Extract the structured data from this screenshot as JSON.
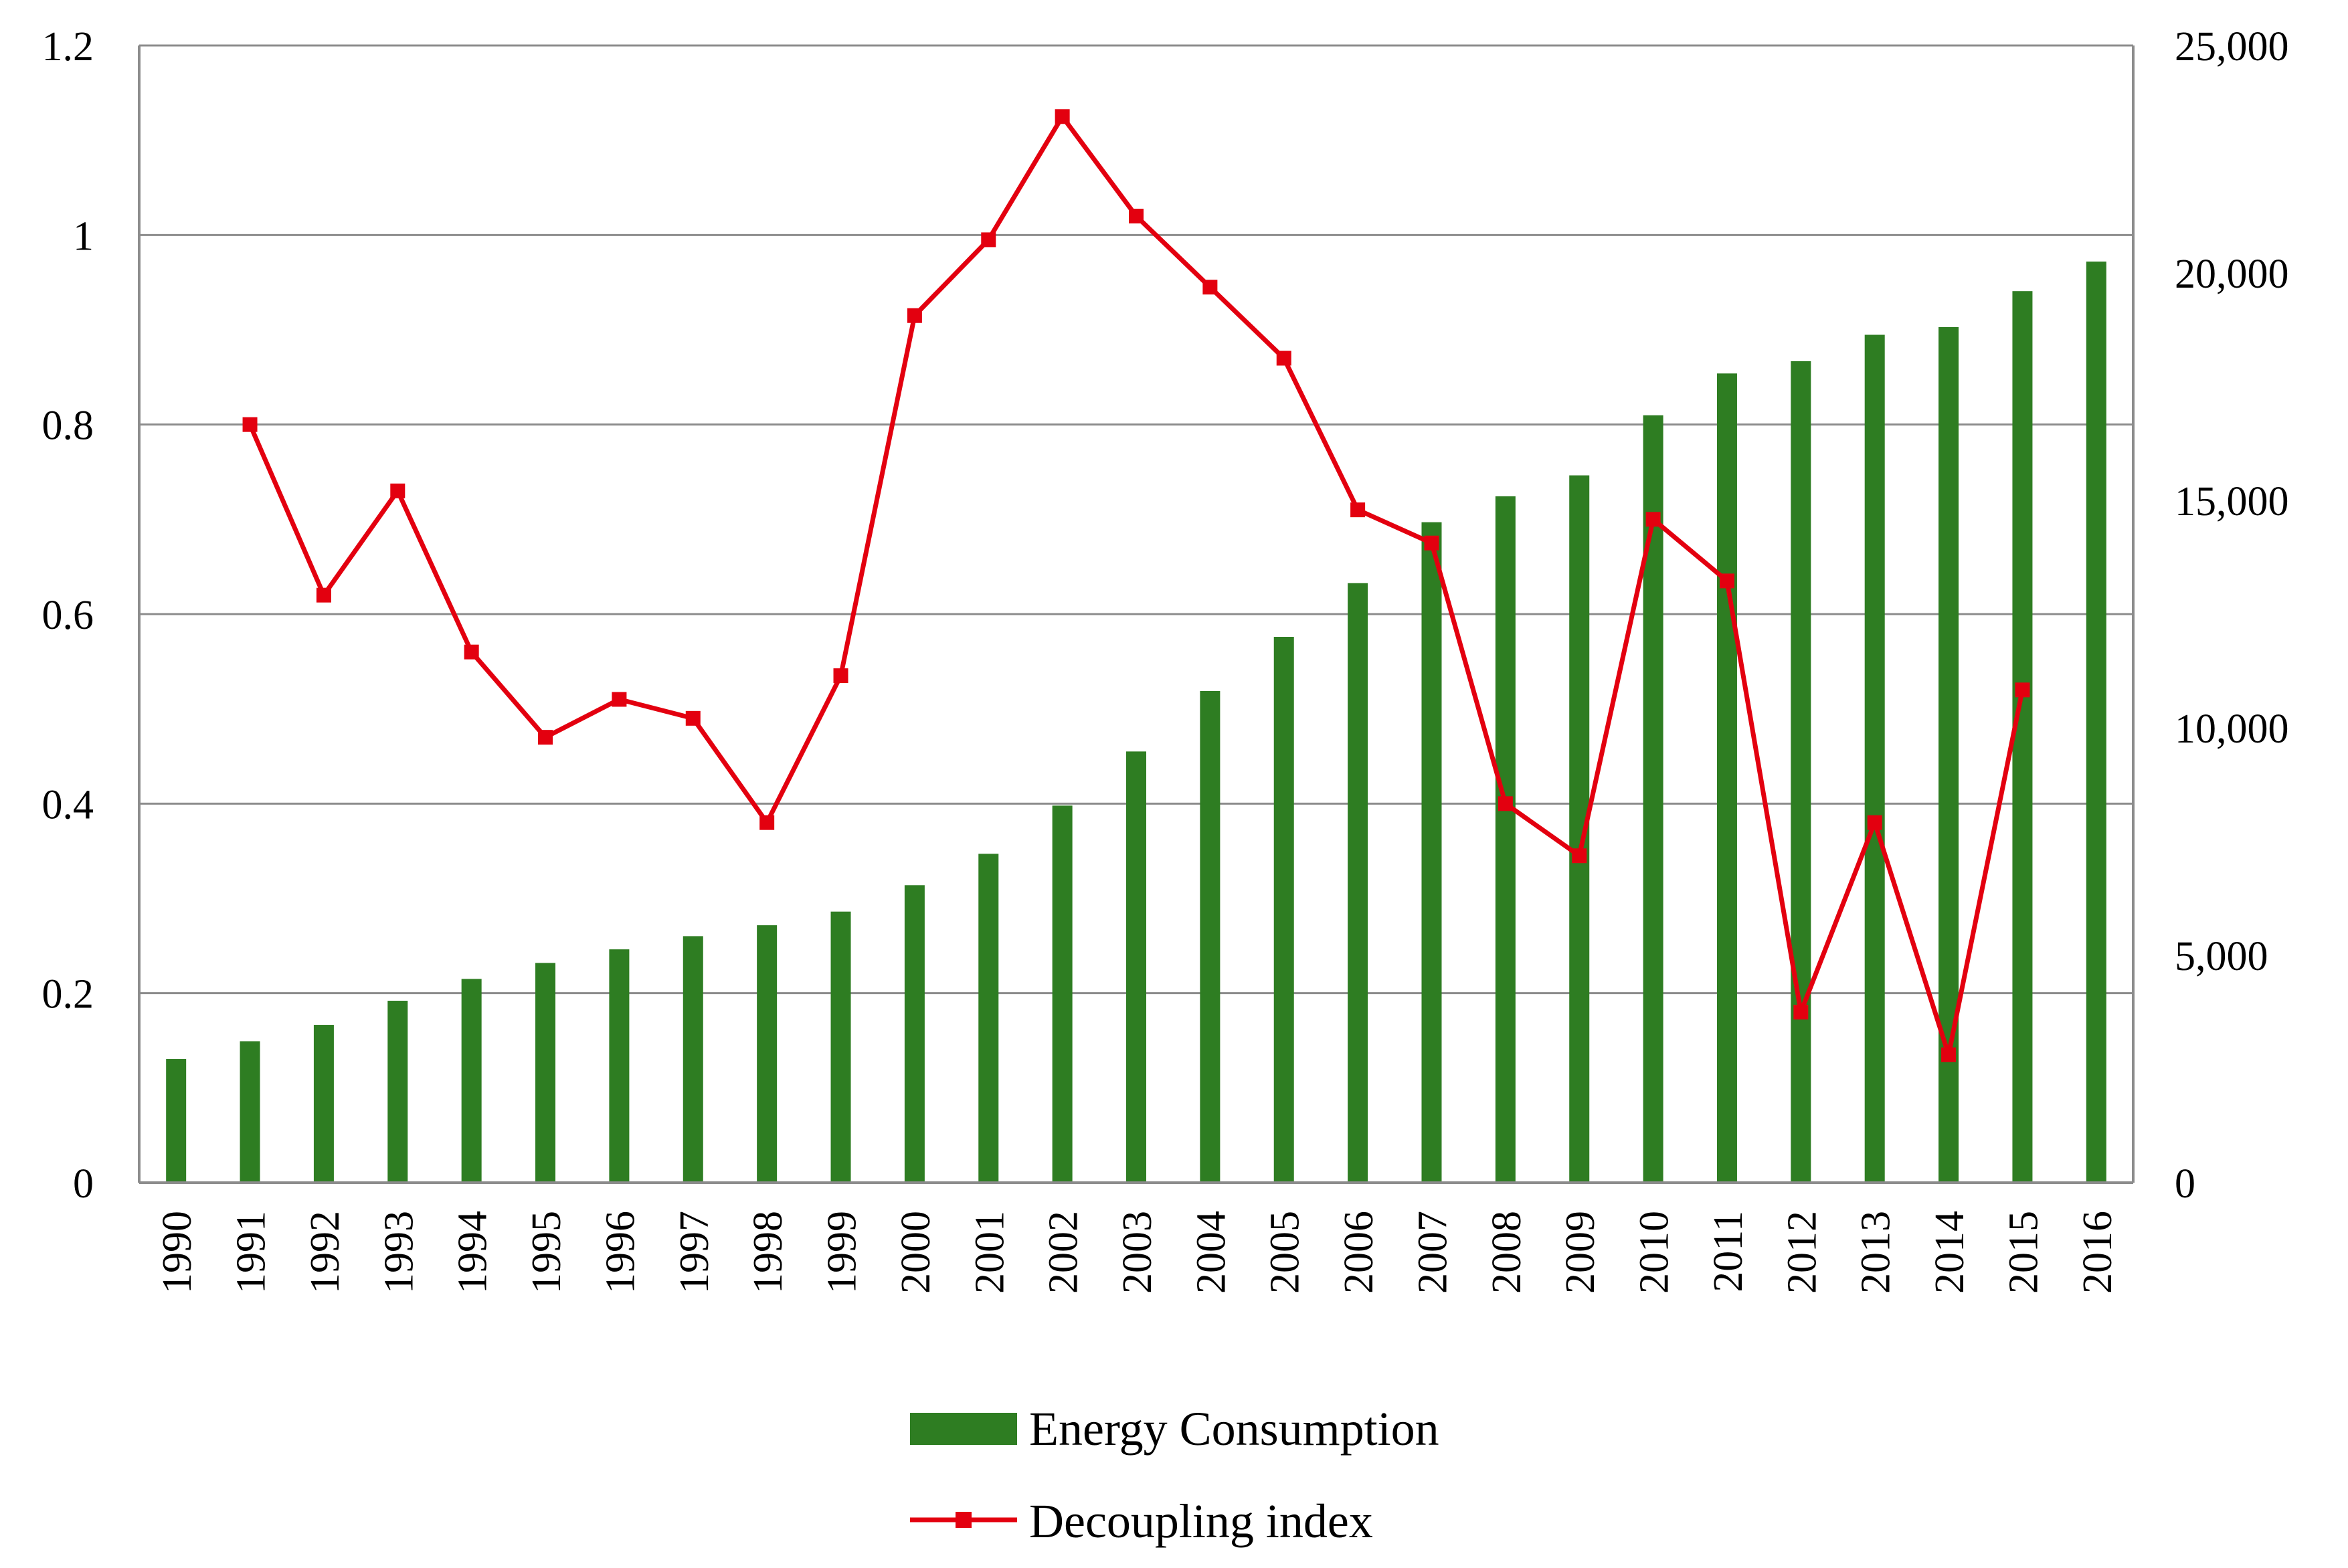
{
  "chart_data": {
    "type": "bar+line",
    "title": "",
    "categories": [
      "1990",
      "1991",
      "1992",
      "1993",
      "1994",
      "1995",
      "1996",
      "1997",
      "1998",
      "1999",
      "2000",
      "2001",
      "2002",
      "2003",
      "2004",
      "2005",
      "2006",
      "2007",
      "2008",
      "2009",
      "2010",
      "2011",
      "2012",
      "2013",
      "2014",
      "2015",
      "2016"
    ],
    "series": [
      {
        "name": "Energy Consumption",
        "type": "bar",
        "axis": "right",
        "color": "#2e7d22",
        "values": [
          2720,
          3110,
          3470,
          4000,
          4480,
          4830,
          5130,
          5420,
          5660,
          5960,
          6540,
          7230,
          8290,
          9480,
          10810,
          12000,
          13180,
          14520,
          15090,
          15550,
          16870,
          17790,
          18060,
          18640,
          18810,
          19600,
          20250
        ]
      },
      {
        "name": "Decoupling index",
        "type": "line",
        "axis": "left",
        "color": "#e3000f",
        "values": [
          null,
          0.8,
          0.62,
          0.73,
          0.56,
          0.47,
          0.51,
          0.49,
          0.38,
          0.535,
          0.915,
          0.995,
          1.125,
          1.02,
          0.945,
          0.87,
          0.71,
          0.675,
          0.4,
          0.345,
          0.7,
          0.635,
          0.18,
          0.38,
          0.135,
          0.52,
          null
        ]
      }
    ],
    "y_left": {
      "min": 0,
      "max": 1.2,
      "ticks": [
        "0",
        "0.2",
        "0.4",
        "0.6",
        "0.8",
        "1",
        "1.2"
      ],
      "tick_values": [
        0,
        0.2,
        0.4,
        0.6,
        0.8,
        1.0,
        1.2
      ]
    },
    "y_right": {
      "min": 0,
      "max": 25000,
      "ticks": [
        "0",
        "5,000",
        "10,000",
        "15,000",
        "20,000",
        "25,000"
      ],
      "tick_values": [
        0,
        5000,
        10000,
        15000,
        20000,
        25000
      ]
    },
    "grid": true,
    "legend_position": "bottom-center",
    "legend": [
      "Energy Consumption",
      "Decoupling index"
    ]
  }
}
